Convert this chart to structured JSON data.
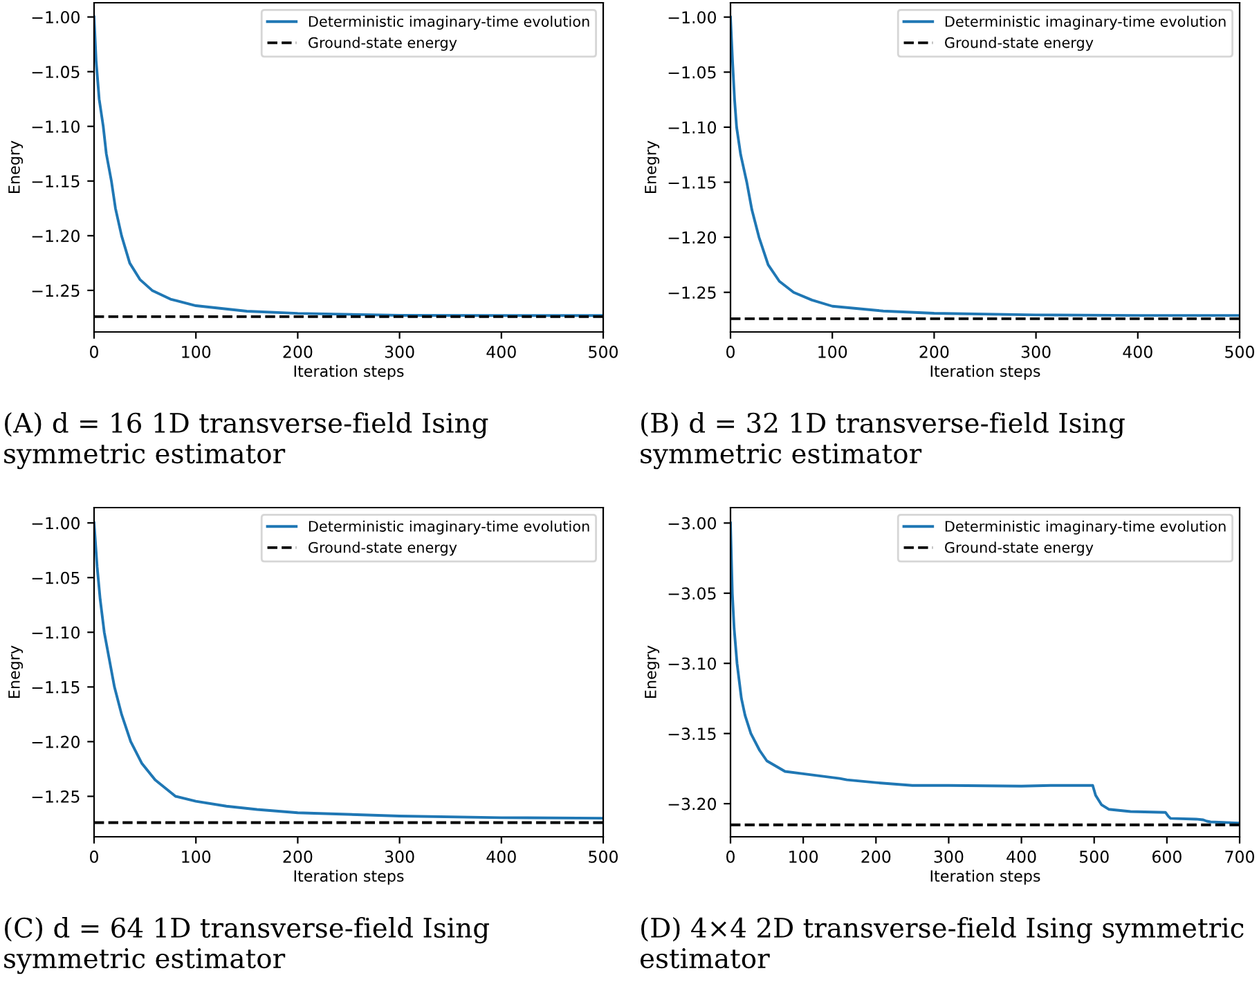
{
  "chart_data": [
    {
      "type": "line",
      "xlabel": "Iteration steps",
      "ylabel": "Enegry",
      "legend": "top right",
      "grid": false,
      "xlim": [
        0,
        500
      ],
      "xticks": [
        0,
        100,
        200,
        300,
        400,
        500
      ],
      "ylim": [
        -1.288,
        -0.987
      ],
      "yticks": [
        {
          "value": -1.0,
          "label": "−1.00"
        },
        {
          "value": -1.05,
          "label": "−1.05"
        },
        {
          "value": -1.1,
          "label": "−1.10"
        },
        {
          "value": -1.15,
          "label": "−1.15"
        },
        {
          "value": -1.2,
          "label": "−1.20"
        },
        {
          "value": -1.25,
          "label": "−1.25"
        }
      ],
      "series": [
        {
          "name": "Deterministic imaginary-time evolution",
          "color": "#1f77b4",
          "line_style": "solid",
          "x": [
            0,
            2,
            5,
            9,
            12,
            17,
            21,
            27,
            35,
            45,
            57,
            75,
            100,
            150,
            200,
            300,
            400,
            500
          ],
          "values": [
            -1.0,
            -1.04,
            -1.075,
            -1.1,
            -1.125,
            -1.15,
            -1.175,
            -1.2,
            -1.225,
            -1.24,
            -1.25,
            -1.258,
            -1.264,
            -1.269,
            -1.271,
            -1.2728,
            -1.273,
            -1.273
          ]
        }
      ],
      "ref_lines": [
        {
          "axis": "y",
          "value": -1.274,
          "label": "Ground-state energy",
          "color": "#000000",
          "line_style": "dashed"
        }
      ],
      "annotations": [
        "(A) d = 16 1D transverse-field Ising symmetric estimator"
      ]
    },
    {
      "type": "line",
      "xlabel": "Iteration steps",
      "ylabel": "Enegry",
      "legend": "top right",
      "grid": false,
      "xlim": [
        0,
        500
      ],
      "xticks": [
        0,
        100,
        200,
        300,
        400,
        500
      ],
      "ylim": [
        -1.286,
        -0.987
      ],
      "yticks": [
        {
          "value": -1.0,
          "label": "−1.00"
        },
        {
          "value": -1.05,
          "label": "−1.05"
        },
        {
          "value": -1.1,
          "label": "−1.10"
        },
        {
          "value": -1.15,
          "label": "−1.15"
        },
        {
          "value": -1.2,
          "label": "−1.20"
        },
        {
          "value": -1.25,
          "label": "−1.25"
        }
      ],
      "series": [
        {
          "name": "Deterministic imaginary-time evolution",
          "color": "#1f77b4",
          "line_style": "solid",
          "x": [
            0,
            2,
            4,
            6,
            10,
            16,
            21,
            28,
            37,
            48,
            62,
            80,
            100,
            150,
            200,
            300,
            400,
            500
          ],
          "values": [
            -1.0,
            -1.04,
            -1.075,
            -1.1,
            -1.125,
            -1.15,
            -1.175,
            -1.2,
            -1.225,
            -1.24,
            -1.25,
            -1.257,
            -1.2626,
            -1.267,
            -1.269,
            -1.2705,
            -1.271,
            -1.271
          ]
        }
      ],
      "ref_lines": [
        {
          "axis": "y",
          "value": -1.274,
          "label": "Ground-state energy",
          "color": "#000000",
          "line_style": "dashed"
        }
      ],
      "annotations": [
        "(B) d = 32 1D transverse-field Ising symmetric estimator"
      ]
    },
    {
      "type": "line",
      "xlabel": "Iteration steps",
      "ylabel": "Enegry",
      "legend": "top right",
      "grid": false,
      "xlim": [
        0,
        500
      ],
      "xticks": [
        0,
        100,
        200,
        300,
        400,
        500
      ],
      "ylim": [
        -1.287,
        -0.986
      ],
      "yticks": [
        {
          "value": -1.0,
          "label": "−1.00"
        },
        {
          "value": -1.05,
          "label": "−1.05"
        },
        {
          "value": -1.1,
          "label": "−1.10"
        },
        {
          "value": -1.15,
          "label": "−1.15"
        },
        {
          "value": -1.2,
          "label": "−1.20"
        },
        {
          "value": -1.25,
          "label": "−1.25"
        }
      ],
      "series": [
        {
          "name": "Deterministic imaginary-time evolution",
          "color": "#1f77b4",
          "line_style": "solid",
          "x": [
            0,
            3,
            6,
            10,
            15,
            20,
            27,
            36,
            47,
            60,
            80,
            100,
            130,
            160,
            200,
            300,
            400,
            500
          ],
          "values": [
            -1.0,
            -1.04,
            -1.07,
            -1.1,
            -1.125,
            -1.15,
            -1.175,
            -1.2,
            -1.22,
            -1.235,
            -1.25,
            -1.2545,
            -1.259,
            -1.262,
            -1.265,
            -1.268,
            -1.2695,
            -1.27
          ]
        }
      ],
      "ref_lines": [
        {
          "axis": "y",
          "value": -1.274,
          "label": "Ground-state energy",
          "color": "#000000",
          "line_style": "dashed"
        }
      ],
      "annotations": [
        "(C) d = 64 1D transverse-field Ising symmetric estimator"
      ]
    },
    {
      "type": "line",
      "xlabel": "Iteration steps",
      "ylabel": "Enegry",
      "legend": "top right",
      "grid": false,
      "xlim": [
        0,
        700
      ],
      "xticks": [
        0,
        100,
        200,
        300,
        400,
        500,
        600,
        700
      ],
      "ylim": [
        -3.2236,
        -2.989
      ],
      "yticks": [
        {
          "value": -3.0,
          "label": "−3.00"
        },
        {
          "value": -3.05,
          "label": "−3.05"
        },
        {
          "value": -3.1,
          "label": "−3.10"
        },
        {
          "value": -3.15,
          "label": "−3.15"
        },
        {
          "value": -3.2,
          "label": "−3.20"
        }
      ],
      "series": [
        {
          "name": "Deterministic imaginary-time evolution",
          "color": "#1f77b4",
          "line_style": "solid",
          "x": [
            0,
            1,
            2.5,
            5,
            9,
            15,
            20,
            28,
            40,
            50,
            75,
            100,
            150,
            160,
            200,
            250,
            300,
            400,
            440,
            498,
            502,
            510,
            520,
            550,
            598,
            602,
            605,
            640,
            650,
            655,
            660,
            700
          ],
          "values": [
            -3.0,
            -3.02,
            -3.05,
            -3.075,
            -3.1,
            -3.125,
            -3.137,
            -3.15,
            -3.162,
            -3.1695,
            -3.177,
            -3.1787,
            -3.182,
            -3.183,
            -3.185,
            -3.187,
            -3.187,
            -3.1875,
            -3.187,
            -3.187,
            -3.194,
            -3.2007,
            -3.204,
            -3.2056,
            -3.2062,
            -3.209,
            -3.2105,
            -3.211,
            -3.2115,
            -3.2125,
            -3.213,
            -3.2138
          ]
        }
      ],
      "ref_lines": [
        {
          "axis": "y",
          "value": -3.2151,
          "label": "Ground-state energy",
          "color": "#000000",
          "line_style": "dashed"
        }
      ],
      "annotations": [
        "(D) 4×4 2D transverse-field Ising symmetric estimator"
      ]
    }
  ]
}
